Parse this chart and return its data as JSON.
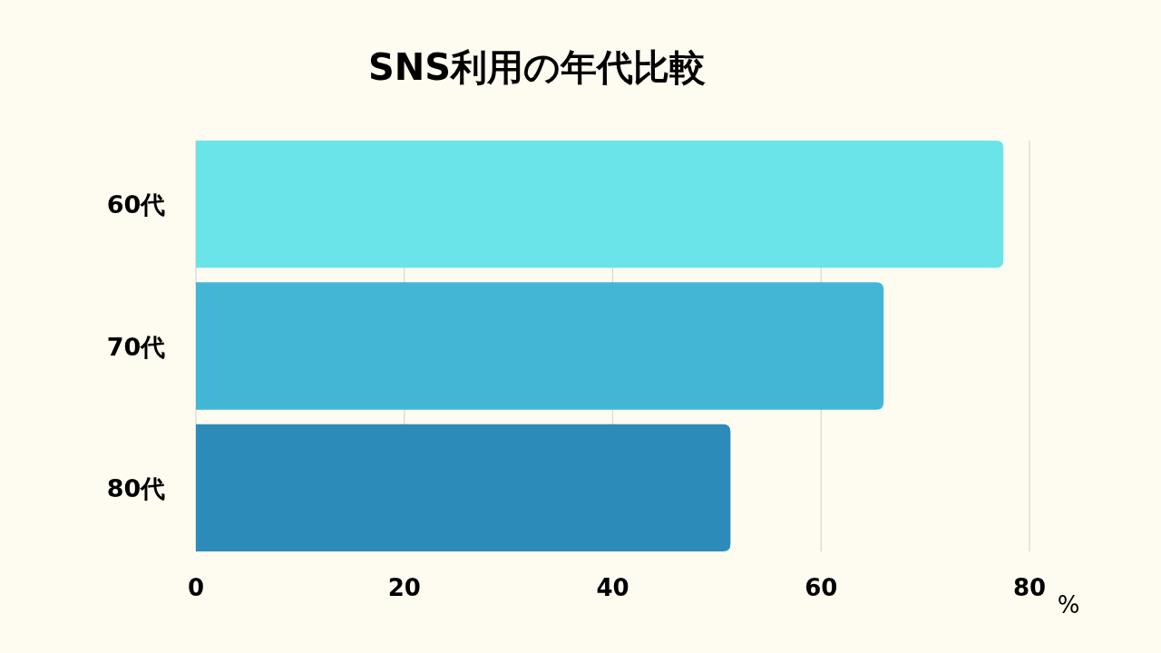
{
  "chart_data": {
    "type": "bar",
    "orientation": "horizontal",
    "title": "SNS利用の年代比較",
    "xlabel": "%",
    "categories": [
      "60代",
      "70代",
      "80代"
    ],
    "values": [
      77.5,
      66.0,
      51.3
    ],
    "colors": [
      "#6ae4e8",
      "#43b6d6",
      "#2d8bb9"
    ],
    "xlim": [
      0,
      80
    ],
    "xticks": [
      0,
      20,
      40,
      60,
      80
    ],
    "grid": "x"
  }
}
